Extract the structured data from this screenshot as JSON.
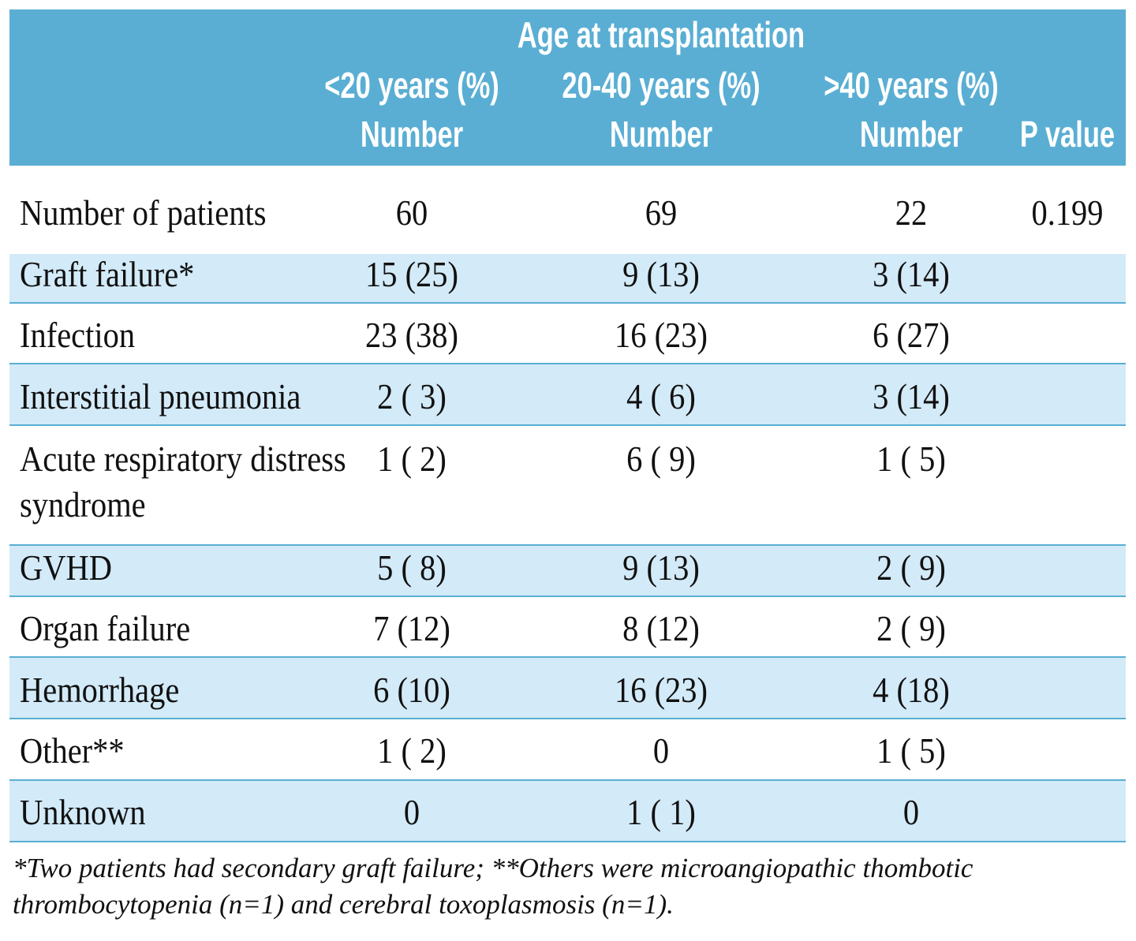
{
  "header": {
    "title": "Age at transplantation",
    "groups": [
      "<20 years (%)",
      "20-40 years (%)",
      ">40 years (%)"
    ],
    "subheaders": [
      "Number",
      "Number",
      "Number",
      "P value"
    ]
  },
  "table": {
    "rows": [
      [
        "Number of patients",
        "60",
        "69",
        "22",
        "0.199"
      ],
      [
        "Graft failure*",
        "15 (25)",
        "9 (13)",
        "3 (14)"
      ],
      [
        "Infection",
        "23 (38)",
        "16 (23)",
        "6 (27)"
      ],
      [
        "Interstitial pneumonia",
        "2 ( 3)",
        "4 ( 6)",
        "3 (14)"
      ],
      [
        "Acute respiratory distress syndrome",
        "1 ( 2)",
        "6 ( 9)",
        "1 ( 5)"
      ],
      [
        "GVHD",
        "5 ( 8)",
        "9 (13)",
        "2 ( 9)"
      ],
      [
        "Organ failure",
        "7 (12)",
        "8 (12)",
        "2 ( 9)"
      ],
      [
        "Hemorrhage",
        "6 (10)",
        "16 (23)",
        "4 (18)"
      ],
      [
        "Other**",
        "1 ( 2)",
        "0",
        "1 ( 5)"
      ],
      [
        "Unknown",
        "0",
        "1 ( 1)",
        "0"
      ]
    ]
  },
  "footnote": "*Two patients had secondary graft failure; **Others were microangiopathic thombotic thrombocytopenia (n=1) and cerebral toxoplasmosis (n=1)."
}
